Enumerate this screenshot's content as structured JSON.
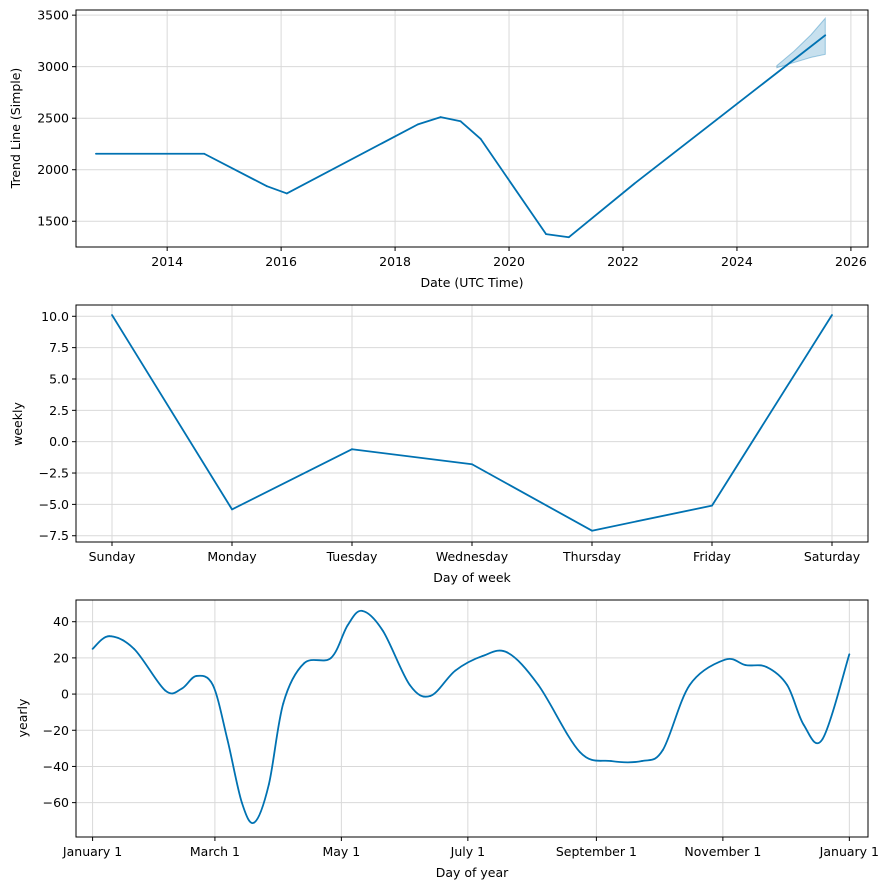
{
  "colors": {
    "line": "#0072B2",
    "band": "#0072B2",
    "grid": "#d9d9d9",
    "axis": "#000000"
  },
  "chart_data": [
    {
      "type": "line",
      "id": "trend",
      "xlabel": "Date (UTC Time)",
      "ylabel": "Trend Line (Simple)",
      "xlim": [
        2012.4,
        2026.3
      ],
      "ylim": [
        1250,
        3550
      ],
      "xticks": [
        2014,
        2016,
        2018,
        2020,
        2022,
        2024,
        2026
      ],
      "xtick_labels": [
        "2014",
        "2016",
        "2018",
        "2020",
        "2022",
        "2024",
        "2026"
      ],
      "yticks": [
        1500,
        2000,
        2500,
        3000,
        3500
      ],
      "ytick_labels": [
        "1500",
        "2000",
        "2500",
        "3000",
        "3500"
      ],
      "series": [
        {
          "name": "trend",
          "x": [
            2012.75,
            2014.65,
            2015.75,
            2016.1,
            2018.4,
            2018.8,
            2019.15,
            2019.5,
            2020.65,
            2021.05,
            2022.2,
            2025.55
          ],
          "y": [
            2155,
            2155,
            1840,
            1770,
            2440,
            2510,
            2470,
            2300,
            1375,
            1345,
            1865,
            3305
          ]
        }
      ],
      "uncertainty": {
        "x": [
          2024.7,
          2025.0,
          2025.3,
          2025.55
        ],
        "lower": [
          2990,
          3040,
          3090,
          3120
        ],
        "upper": [
          3010,
          3150,
          3310,
          3470
        ]
      }
    },
    {
      "type": "line",
      "id": "weekly",
      "xlabel": "Day of week",
      "ylabel": "weekly",
      "categories": [
        "Sunday",
        "Monday",
        "Tuesday",
        "Wednesday",
        "Thursday",
        "Friday",
        "Saturday"
      ],
      "ylim": [
        -8.0,
        10.9
      ],
      "yticks": [
        -7.5,
        -5.0,
        -2.5,
        0.0,
        2.5,
        5.0,
        7.5,
        10.0
      ],
      "ytick_labels": [
        "−7.5",
        "−5.0",
        "−2.5",
        "0.0",
        "2.5",
        "5.0",
        "7.5",
        "10.0"
      ],
      "series": [
        {
          "name": "weekly",
          "values": [
            10.1,
            -5.4,
            -0.6,
            -1.8,
            -7.1,
            -5.1,
            10.1
          ]
        }
      ]
    },
    {
      "type": "line",
      "id": "yearly",
      "xlabel": "Day of year",
      "ylabel": "yearly",
      "xlim": [
        -8,
        374
      ],
      "ylim": [
        -79,
        52
      ],
      "xticks": [
        0,
        59,
        120,
        181,
        243,
        304,
        365
      ],
      "xtick_labels": [
        "January 1",
        "March 1",
        "May 1",
        "July 1",
        "September 1",
        "November 1",
        "January 1"
      ],
      "yticks": [
        -60,
        -40,
        -20,
        0,
        20,
        40
      ],
      "ytick_labels": [
        "−60",
        "−40",
        "−20",
        "0",
        "20",
        "40"
      ],
      "series": [
        {
          "name": "yearly",
          "x": [
            0,
            8,
            20,
            35,
            43,
            50,
            58,
            65,
            72,
            78,
            85,
            92,
            102,
            115,
            123,
            130,
            140,
            153,
            163,
            175,
            188,
            200,
            215,
            235,
            250,
            265,
            275,
            288,
            305,
            315,
            325,
            335,
            343,
            352,
            365
          ],
          "y": [
            25,
            32,
            25,
            2,
            3,
            10,
            5,
            -25,
            -60,
            -71,
            -50,
            -5,
            17,
            20,
            38,
            46,
            35,
            5,
            -1,
            13,
            21,
            23,
            5,
            -32,
            -37,
            -37,
            -31,
            5,
            19,
            16,
            15,
            5,
            -17,
            -25,
            22
          ]
        }
      ]
    }
  ]
}
